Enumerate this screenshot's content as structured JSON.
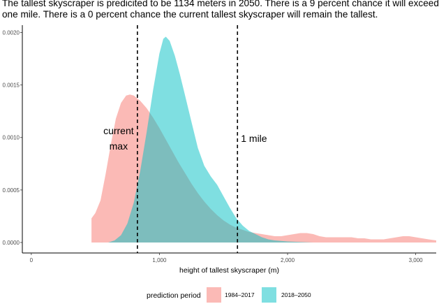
{
  "title": "The tallest skyscraper is predicited to be 1134 meters in 2050. There is a 9 percent chance it will exceed one mile. There is a 0 percent chance the current tallest skyscraper will remain the tallest.",
  "chart_data": {
    "type": "area",
    "title": "The tallest skyscraper is predicited to be 1134 meters in 2050. There is a 9 percent chance it will exceed one mile. There is a 0 percent chance the current tallest skyscraper will remain the tallest.",
    "xlabel": "height of tallest skyscraper (m)",
    "ylabel": "",
    "xlim": [
      -70,
      3160
    ],
    "ylim": [
      -0.0001,
      0.00207
    ],
    "x_ticks": [
      0,
      1000,
      2000,
      3000
    ],
    "x_tick_labels": [
      "0",
      "1,000",
      "2,000",
      "3,000"
    ],
    "y_ticks": [
      0,
      0.0005,
      0.001,
      0.0015,
      0.002
    ],
    "y_tick_labels": [
      "0.0000",
      "0.0005",
      "0.0010",
      "0.0015",
      "0.0020"
    ],
    "grid": false,
    "legend": {
      "position": "bottom",
      "title": "prediction period"
    },
    "series": [
      {
        "name": "1984–2017",
        "color": "#F8766D",
        "points": [
          [
            470,
            0.00023
          ],
          [
            500,
            0.00028
          ],
          [
            540,
            0.0004
          ],
          [
            580,
            0.00065
          ],
          [
            620,
            0.00093
          ],
          [
            660,
            0.00118
          ],
          [
            700,
            0.00133
          ],
          [
            740,
            0.0014
          ],
          [
            770,
            0.00141
          ],
          [
            800,
            0.0014
          ],
          [
            850,
            0.00135
          ],
          [
            900,
            0.00128
          ],
          [
            950,
            0.00119
          ],
          [
            1000,
            0.00109
          ],
          [
            1050,
            0.00098
          ],
          [
            1100,
            0.00087
          ],
          [
            1150,
            0.00076
          ],
          [
            1200,
            0.00066
          ],
          [
            1250,
            0.00056
          ],
          [
            1300,
            0.00047
          ],
          [
            1350,
            0.00039
          ],
          [
            1400,
            0.00032
          ],
          [
            1450,
            0.00026
          ],
          [
            1500,
            0.00021
          ],
          [
            1550,
            0.00017
          ],
          [
            1600,
            0.00014
          ],
          [
            1650,
            0.00012
          ],
          [
            1700,
            0.0001
          ],
          [
            1750,
            9e-05
          ],
          [
            1800,
            8e-05
          ],
          [
            1850,
            7e-05
          ],
          [
            1900,
            6e-05
          ],
          [
            1950,
            6e-05
          ],
          [
            2000,
            7e-05
          ],
          [
            2050,
            8e-05
          ],
          [
            2100,
            9e-05
          ],
          [
            2150,
            9e-05
          ],
          [
            2200,
            8e-05
          ],
          [
            2250,
            6e-05
          ],
          [
            2300,
            5e-05
          ],
          [
            2350,
            5e-05
          ],
          [
            2400,
            5e-05
          ],
          [
            2450,
            5e-05
          ],
          [
            2500,
            5e-05
          ],
          [
            2550,
            4e-05
          ],
          [
            2600,
            4e-05
          ],
          [
            2650,
            3e-05
          ],
          [
            2700,
            3e-05
          ],
          [
            2750,
            3e-05
          ],
          [
            2800,
            4e-05
          ],
          [
            2850,
            5e-05
          ],
          [
            2900,
            6e-05
          ],
          [
            2950,
            6e-05
          ],
          [
            3000,
            5e-05
          ],
          [
            3050,
            4e-05
          ],
          [
            3100,
            3e-05
          ],
          [
            3160,
            2e-05
          ]
        ]
      },
      {
        "name": "2018–2050",
        "color": "#00BFC4",
        "points": [
          [
            470,
            0.0
          ],
          [
            600,
            0.0
          ],
          [
            650,
            2e-05
          ],
          [
            700,
            7e-05
          ],
          [
            750,
            0.00018
          ],
          [
            800,
            0.00038
          ],
          [
            850,
            0.00068
          ],
          [
            900,
            0.00105
          ],
          [
            950,
            0.00145
          ],
          [
            1000,
            0.0018
          ],
          [
            1030,
            0.00194
          ],
          [
            1050,
            0.00196
          ],
          [
            1080,
            0.00192
          ],
          [
            1120,
            0.00178
          ],
          [
            1160,
            0.0016
          ],
          [
            1200,
            0.0014
          ],
          [
            1250,
            0.00115
          ],
          [
            1300,
            0.0009
          ],
          [
            1350,
            0.00073
          ],
          [
            1400,
            0.00063
          ],
          [
            1450,
            0.00055
          ],
          [
            1500,
            0.00044
          ],
          [
            1550,
            0.00033
          ],
          [
            1600,
            0.00023
          ],
          [
            1650,
            0.00016
          ],
          [
            1700,
            0.00011
          ],
          [
            1750,
            8e-05
          ],
          [
            1800,
            5e-05
          ],
          [
            1850,
            3e-05
          ],
          [
            1900,
            2e-05
          ],
          [
            2000,
            1e-05
          ],
          [
            2200,
            0.0
          ],
          [
            2600,
            0.0
          ],
          [
            3160,
            0.0
          ]
        ]
      }
    ],
    "reference_lines": [
      {
        "x": 828,
        "label": "current max"
      },
      {
        "x": 1609,
        "label": "1 mile"
      }
    ]
  }
}
